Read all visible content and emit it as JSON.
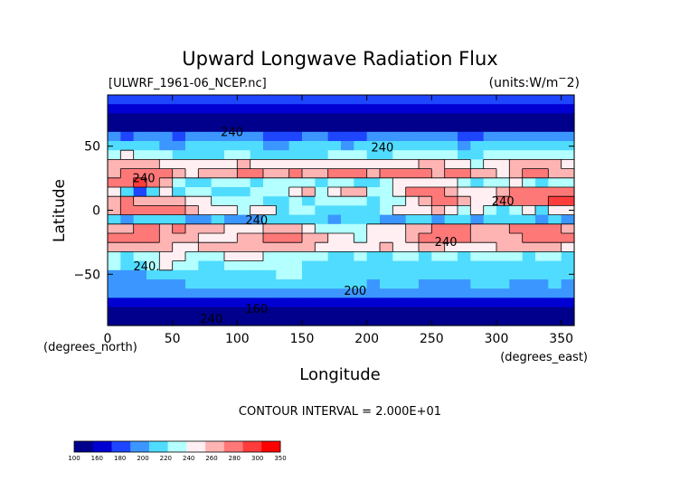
{
  "chart_data": {
    "type": "heatmap",
    "title": "Upward Longwave Radiation Flux",
    "subtitle_left": "[ULWRF_1961-06_NCEP.nc]",
    "subtitle_right": "(units:W/m^2)",
    "xlabel": "Longitude",
    "ylabel": "Latitude",
    "x_units_label": "(degrees_east)",
    "y_units_label": "(degrees_north)",
    "xlim": [
      0,
      360
    ],
    "ylim": [
      -90,
      90
    ],
    "x_ticks": [
      0,
      50,
      100,
      150,
      200,
      250,
      300,
      350
    ],
    "y_ticks": [
      -50,
      0,
      50
    ],
    "footer": "CONTOUR INTERVAL = 2.000E+01",
    "contour_labels": [
      {
        "text": "240",
        "lon": 96,
        "lat": 58
      },
      {
        "text": "240",
        "lon": 212,
        "lat": 46
      },
      {
        "text": "240",
        "lon": 28,
        "lat": 22
      },
      {
        "text": "240",
        "lon": 115,
        "lat": -11
      },
      {
        "text": "240",
        "lon": 261,
        "lat": -28
      },
      {
        "text": "240",
        "lon": 305,
        "lat": 4
      },
      {
        "text": "240.",
        "lon": 30,
        "lat": -47
      },
      {
        "text": "200",
        "lon": 191,
        "lat": -66
      },
      {
        "text": "160",
        "lon": 115,
        "lat": -80
      },
      {
        "text": "240",
        "lon": 80,
        "lat": -88
      }
    ],
    "colorbar": {
      "levels": [
        "100",
        "160",
        "180",
        "200",
        "220",
        "240",
        "260",
        "280",
        "300",
        "350"
      ],
      "colors": [
        "#00008c",
        "#0000d2",
        "#1e46ff",
        "#3c96ff",
        "#50dcff",
        "#b4ffff",
        "#ffeff2",
        "#ffb4b4",
        "#ff7878",
        "#ff3c3c",
        "#ff0000"
      ]
    },
    "grid": [
      [
        2,
        2,
        2,
        2,
        2,
        2,
        2,
        2,
        2,
        2,
        2,
        2,
        2,
        2,
        2,
        2,
        2,
        2,
        2,
        2,
        2,
        2,
        2,
        2,
        2,
        2,
        2,
        2,
        2,
        2,
        2,
        2,
        2,
        2,
        2,
        2
      ],
      [
        1,
        1,
        1,
        1,
        1,
        1,
        1,
        1,
        1,
        1,
        1,
        1,
        1,
        1,
        1,
        1,
        1,
        1,
        1,
        1,
        1,
        1,
        1,
        1,
        1,
        1,
        1,
        1,
        1,
        1,
        1,
        1,
        1,
        1,
        1,
        1
      ],
      [
        0,
        0,
        0,
        0,
        0,
        0,
        0,
        0,
        0,
        0,
        0,
        0,
        0,
        0,
        0,
        0,
        0,
        0,
        0,
        0,
        0,
        0,
        0,
        0,
        0,
        0,
        0,
        0,
        0,
        0,
        0,
        0,
        0,
        0,
        0,
        0
      ],
      [
        0,
        0,
        0,
        0,
        0,
        0,
        0,
        0,
        0,
        0,
        0,
        0,
        0,
        0,
        0,
        0,
        0,
        0,
        0,
        0,
        0,
        0,
        0,
        0,
        0,
        0,
        0,
        0,
        0,
        0,
        0,
        0,
        0,
        0,
        0,
        0
      ],
      [
        3,
        2,
        3,
        3,
        3,
        2,
        3,
        3,
        3,
        3,
        3,
        3,
        2,
        2,
        2,
        3,
        3,
        2,
        2,
        2,
        3,
        3,
        3,
        3,
        3,
        3,
        3,
        2,
        2,
        3,
        3,
        3,
        3,
        3,
        3,
        3
      ],
      [
        4,
        4,
        4,
        4,
        3,
        3,
        4,
        4,
        4,
        4,
        4,
        4,
        3,
        3,
        4,
        4,
        4,
        4,
        3,
        4,
        4,
        4,
        4,
        4,
        4,
        4,
        4,
        3,
        4,
        4,
        4,
        4,
        4,
        4,
        4,
        4
      ],
      [
        5,
        6,
        5,
        5,
        5,
        4,
        4,
        4,
        4,
        5,
        5,
        4,
        4,
        4,
        4,
        4,
        4,
        5,
        5,
        5,
        4,
        4,
        5,
        5,
        5,
        5,
        5,
        4,
        4,
        5,
        5,
        5,
        5,
        5,
        5,
        5
      ],
      [
        7,
        7,
        7,
        7,
        6,
        6,
        6,
        6,
        6,
        6,
        7,
        6,
        6,
        6,
        6,
        6,
        6,
        6,
        6,
        6,
        6,
        6,
        6,
        6,
        7,
        7,
        6,
        6,
        5,
        6,
        6,
        7,
        7,
        7,
        7,
        6
      ],
      [
        7,
        8,
        8,
        8,
        8,
        7,
        6,
        7,
        7,
        7,
        8,
        8,
        7,
        7,
        8,
        7,
        7,
        8,
        8,
        8,
        7,
        8,
        8,
        8,
        8,
        7,
        8,
        8,
        7,
        7,
        6,
        7,
        8,
        8,
        7,
        7
      ],
      [
        8,
        8,
        9,
        8,
        7,
        5,
        4,
        4,
        5,
        5,
        5,
        4,
        5,
        5,
        5,
        5,
        4,
        5,
        5,
        4,
        4,
        5,
        6,
        6,
        6,
        6,
        6,
        5,
        4,
        5,
        5,
        6,
        5,
        4,
        5,
        5
      ],
      [
        6,
        4,
        2,
        4,
        6,
        4,
        5,
        5,
        4,
        4,
        4,
        5,
        5,
        5,
        6,
        7,
        5,
        6,
        7,
        7,
        5,
        5,
        6,
        8,
        8,
        8,
        7,
        6,
        6,
        6,
        7,
        8,
        8,
        8,
        8,
        8
      ],
      [
        7,
        8,
        7,
        7,
        7,
        7,
        6,
        6,
        5,
        5,
        5,
        5,
        4,
        4,
        5,
        4,
        5,
        5,
        5,
        5,
        4,
        5,
        5,
        6,
        7,
        8,
        8,
        7,
        6,
        6,
        8,
        8,
        8,
        8,
        9,
        9
      ],
      [
        7,
        8,
        8,
        8,
        8,
        8,
        7,
        6,
        6,
        6,
        5,
        6,
        6,
        4,
        5,
        5,
        4,
        4,
        4,
        4,
        4,
        5,
        6,
        6,
        6,
        7,
        6,
        5,
        6,
        5,
        4,
        5,
        6,
        4,
        6,
        6
      ],
      [
        4,
        3,
        4,
        4,
        4,
        4,
        3,
        3,
        4,
        3,
        3,
        3,
        4,
        4,
        4,
        4,
        4,
        3,
        4,
        4,
        4,
        3,
        3,
        4,
        4,
        3,
        4,
        4,
        3,
        4,
        4,
        4,
        4,
        3,
        4,
        3
      ],
      [
        7,
        7,
        8,
        8,
        7,
        8,
        7,
        7,
        7,
        6,
        6,
        6,
        7,
        7,
        7,
        6,
        5,
        5,
        5,
        5,
        6,
        6,
        6,
        7,
        7,
        8,
        8,
        8,
        7,
        7,
        7,
        8,
        8,
        8,
        8,
        7
      ],
      [
        8,
        8,
        8,
        8,
        7,
        7,
        7,
        6,
        6,
        6,
        7,
        7,
        8,
        8,
        8,
        7,
        7,
        6,
        6,
        5,
        6,
        6,
        6,
        7,
        8,
        8,
        8,
        8,
        7,
        7,
        7,
        7,
        8,
        8,
        8,
        8
      ],
      [
        7,
        7,
        7,
        7,
        7,
        6,
        6,
        7,
        7,
        7,
        7,
        7,
        7,
        7,
        7,
        7,
        6,
        6,
        6,
        6,
        6,
        7,
        6,
        6,
        7,
        7,
        6,
        6,
        6,
        6,
        7,
        7,
        7,
        7,
        7,
        6
      ],
      [
        5,
        4,
        5,
        5,
        6,
        6,
        5,
        5,
        5,
        6,
        6,
        6,
        5,
        5,
        5,
        5,
        5,
        4,
        4,
        5,
        4,
        4,
        5,
        5,
        4,
        5,
        5,
        4,
        5,
        5,
        5,
        5,
        4,
        5,
        5,
        4
      ],
      [
        5,
        4,
        4,
        5,
        6,
        5,
        5,
        4,
        4,
        5,
        5,
        5,
        5,
        5,
        5,
        4,
        4,
        4,
        4,
        4,
        4,
        4,
        4,
        4,
        4,
        4,
        4,
        4,
        4,
        4,
        4,
        4,
        4,
        4,
        4,
        4
      ],
      [
        3,
        3,
        3,
        4,
        4,
        4,
        4,
        4,
        4,
        4,
        4,
        4,
        4,
        5,
        5,
        4,
        4,
        4,
        4,
        4,
        4,
        4,
        4,
        4,
        4,
        4,
        4,
        4,
        4,
        4,
        4,
        4,
        4,
        4,
        4,
        4
      ],
      [
        3,
        3,
        3,
        3,
        3,
        3,
        4,
        4,
        4,
        4,
        4,
        4,
        4,
        4,
        4,
        4,
        4,
        4,
        4,
        4,
        3,
        4,
        4,
        4,
        3,
        3,
        3,
        3,
        4,
        4,
        4,
        3,
        3,
        3,
        4,
        3
      ],
      [
        3,
        3,
        3,
        3,
        3,
        3,
        3,
        3,
        3,
        3,
        3,
        3,
        3,
        3,
        3,
        3,
        3,
        3,
        3,
        3,
        3,
        3,
        3,
        3,
        3,
        3,
        3,
        3,
        3,
        3,
        3,
        3,
        3,
        3,
        3,
        3
      ],
      [
        1,
        1,
        1,
        1,
        1,
        1,
        1,
        1,
        1,
        1,
        1,
        1,
        1,
        1,
        1,
        1,
        1,
        1,
        1,
        1,
        1,
        1,
        1,
        1,
        1,
        1,
        1,
        1,
        1,
        1,
        1,
        1,
        1,
        1,
        1,
        1
      ],
      [
        0,
        0,
        0,
        0,
        0,
        0,
        0,
        0,
        0,
        0,
        0,
        0,
        0,
        0,
        0,
        0,
        0,
        0,
        0,
        0,
        0,
        0,
        0,
        0,
        0,
        0,
        0,
        0,
        0,
        0,
        0,
        0,
        0,
        0,
        0,
        0
      ],
      [
        0,
        0,
        0,
        0,
        0,
        0,
        0,
        0,
        0,
        0,
        0,
        0,
        0,
        0,
        0,
        0,
        0,
        0,
        0,
        0,
        0,
        0,
        0,
        0,
        0,
        0,
        0,
        0,
        0,
        0,
        0,
        0,
        0,
        0,
        0,
        0
      ]
    ],
    "grid_note_rows": "rows run from north (lat 90) to south (lat -90); each value is the color index of the colorbar band"
  }
}
